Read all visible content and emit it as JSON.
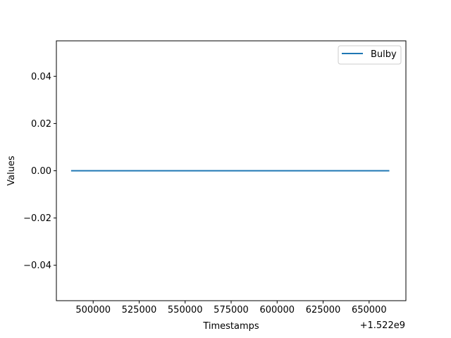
{
  "chart_data": {
    "type": "line",
    "xlabel": "Timestamps",
    "ylabel": "Values",
    "x_offset_label": "+1.522e9",
    "xlim": [
      1522480000,
      1522670000
    ],
    "ylim": [
      -0.055,
      0.055
    ],
    "xticks": [
      1522500000,
      1522525000,
      1522550000,
      1522575000,
      1522600000,
      1522625000,
      1522650000
    ],
    "xtick_labels": [
      "500000",
      "525000",
      "550000",
      "575000",
      "600000",
      "625000",
      "650000"
    ],
    "yticks": [
      -0.04,
      -0.02,
      0.0,
      0.02,
      0.04
    ],
    "ytick_labels": [
      "−0.04",
      "−0.02",
      "0.00",
      "0.02",
      "0.04"
    ],
    "grid": false,
    "legend_position": "top-right",
    "series": [
      {
        "name": "Bulby",
        "color": "#1f77b4",
        "x": [
          1522488000,
          1522661000
        ],
        "y": [
          0,
          0
        ]
      }
    ]
  }
}
